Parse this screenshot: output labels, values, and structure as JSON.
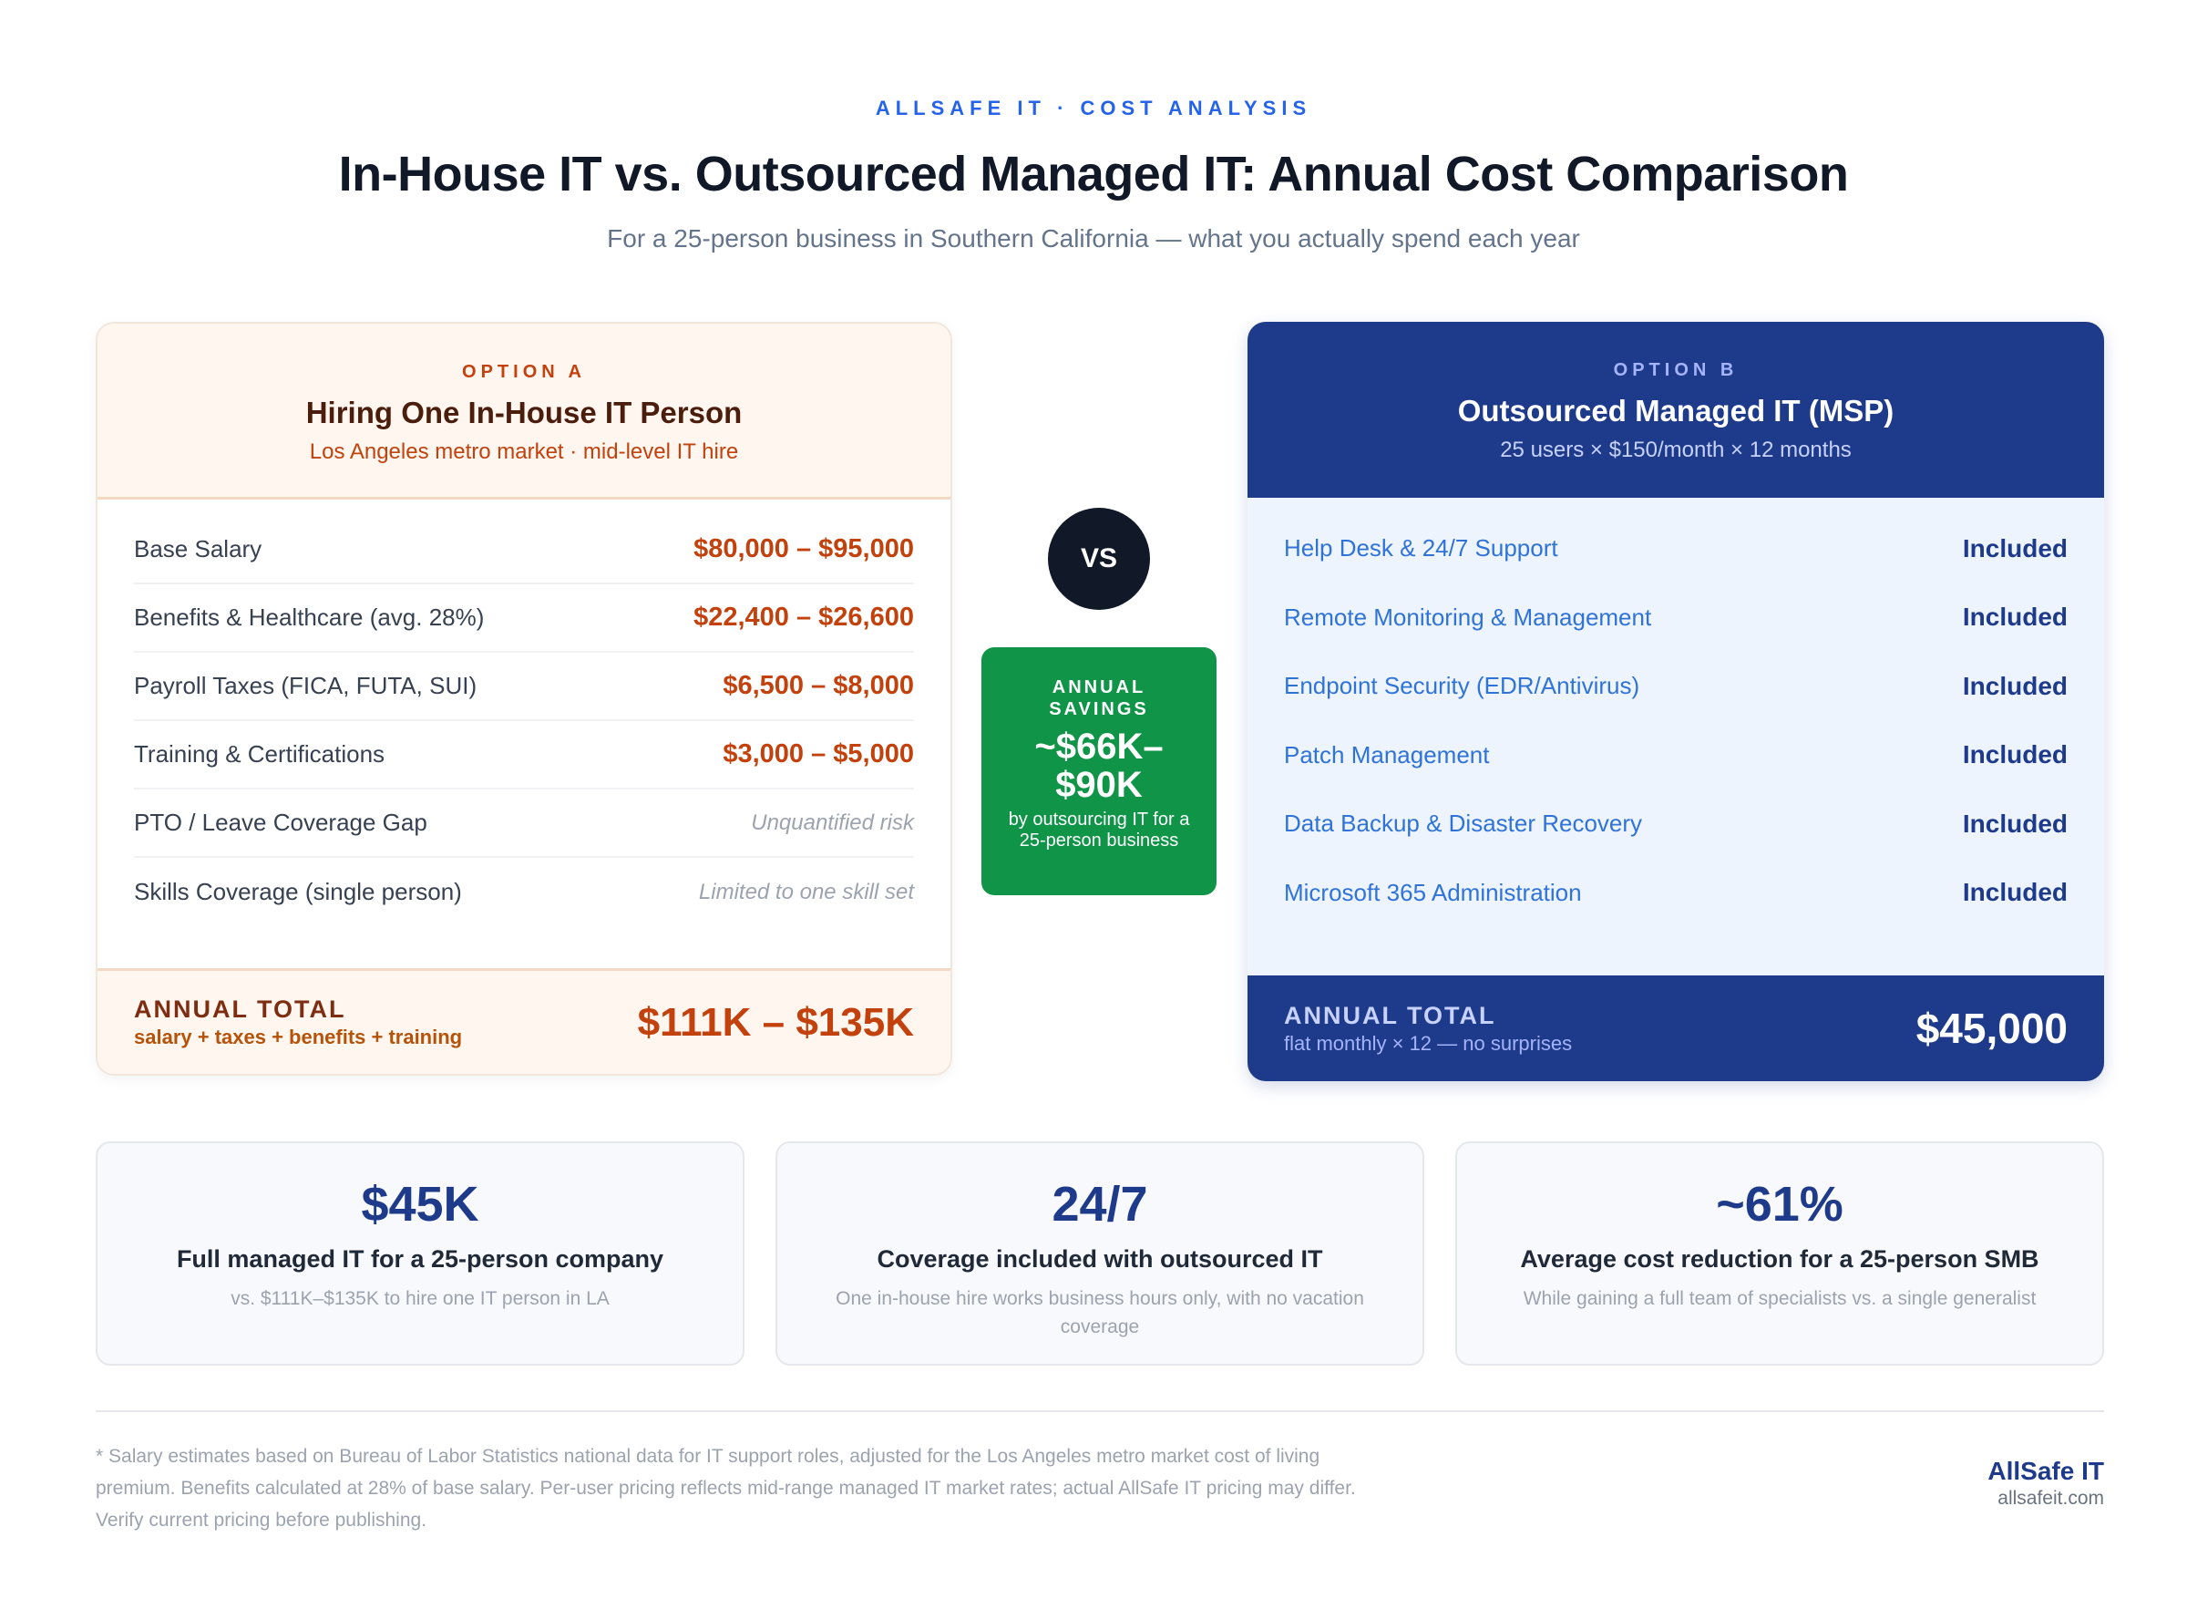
{
  "header": {
    "eyebrow": "ALLSAFE IT · COST ANALYSIS",
    "title": "In-House IT vs. Outsourced Managed IT: Annual Cost Comparison",
    "subtitle": "For a 25-person business in Southern California — what you actually spend each year"
  },
  "option_a": {
    "label": "OPTION A",
    "title": "Hiring One In-House IT Person",
    "subtitle": "Los Angeles metro market · mid-level IT hire",
    "rows": [
      {
        "label": "Base Salary",
        "value": "$80,000 – $95,000"
      },
      {
        "label": "Benefits & Healthcare (avg. 28%)",
        "value": "$22,400 – $26,600"
      },
      {
        "label": "Payroll Taxes (FICA, FUTA, SUI)",
        "value": "$6,500 – $8,000"
      },
      {
        "label": "Training & Certifications",
        "value": "$3,000 – $5,000"
      },
      {
        "label": "PTO / Leave Coverage Gap",
        "value": "Unquantified risk"
      },
      {
        "label": "Skills Coverage (single person)",
        "value": "Limited to one skill set"
      }
    ],
    "total_label": "ANNUAL TOTAL",
    "total_sub": "salary + taxes + benefits + training",
    "total_value": "$111K – $135K"
  },
  "middle": {
    "vs": "VS",
    "savings_label_1": "ANNUAL",
    "savings_label_2": "SAVINGS",
    "savings_value_1": "~$66K–",
    "savings_value_2": "$90K",
    "savings_desc": "by outsourcing IT for a 25-person business"
  },
  "option_b": {
    "label": "OPTION B",
    "title": "Outsourced Managed IT (MSP)",
    "subtitle": "25 users × $150/month × 12 months",
    "rows": [
      {
        "label": "Help Desk & 24/7 Support",
        "value": "Included"
      },
      {
        "label": "Remote Monitoring & Management",
        "value": "Included"
      },
      {
        "label": "Endpoint Security (EDR/Antivirus)",
        "value": "Included"
      },
      {
        "label": "Patch Management",
        "value": "Included"
      },
      {
        "label": "Data Backup & Disaster Recovery",
        "value": "Included"
      },
      {
        "label": "Microsoft 365 Administration",
        "value": "Included"
      }
    ],
    "total_label": "ANNUAL TOTAL",
    "total_sub": "flat monthly × 12 — no surprises",
    "total_value": "$45,000"
  },
  "stats": [
    {
      "big": "$45K",
      "caption": "Full managed IT for a 25-person company",
      "desc": "vs. $111K–$135K to hire one IT person in LA"
    },
    {
      "big": "24/7",
      "caption": "Coverage included with outsourced IT",
      "desc": "One in-house hire works business hours only, with no vacation coverage"
    },
    {
      "big": "~61%",
      "caption": "Average cost reduction for a 25-person SMB",
      "desc": "While gaining a full team of specialists vs. a single generalist"
    }
  ],
  "footer": {
    "note": "* Salary estimates based on Bureau of Labor Statistics national data for IT support roles, adjusted for the Los Angeles metro market cost of living premium. Benefits calculated at 28% of base salary. Per-user pricing reflects mid-range managed IT market rates; actual AllSafe IT pricing may differ. Verify current pricing before publishing.",
    "brand": "AllSafe IT",
    "url": "allsafeit.com"
  }
}
